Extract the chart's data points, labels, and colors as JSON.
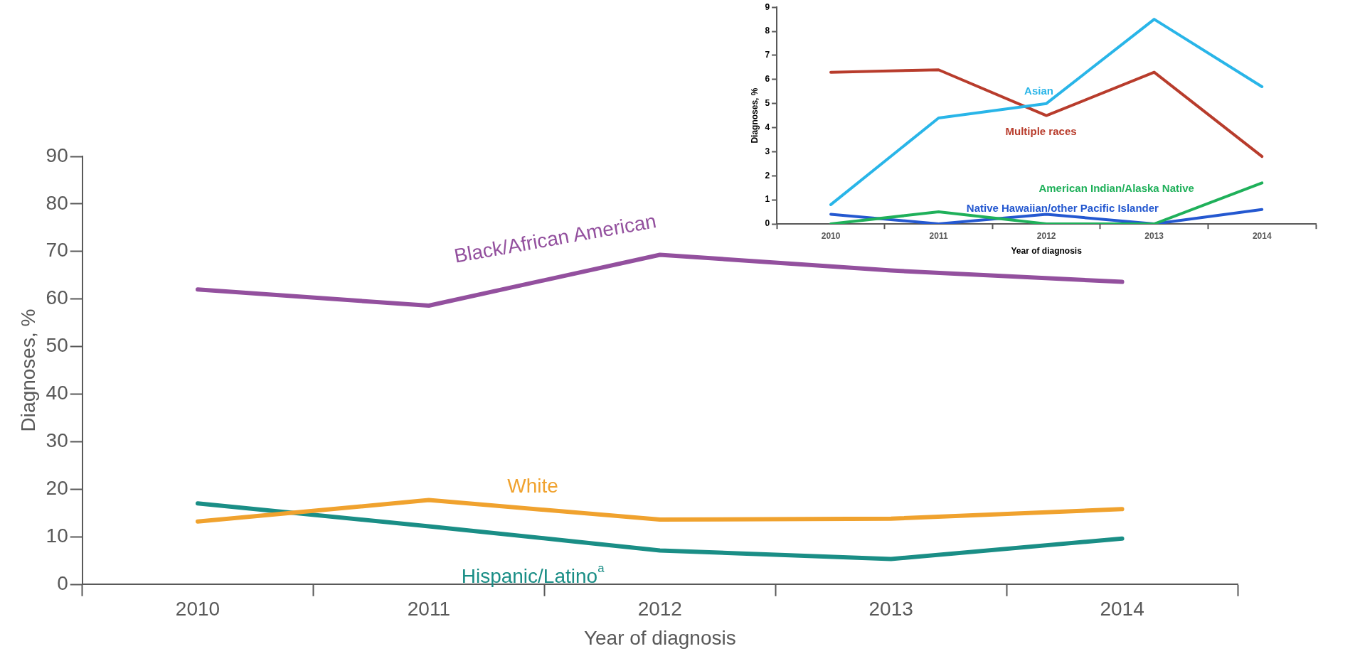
{
  "chart_data": [
    {
      "type": "line",
      "xlabel": "Year of diagnosis",
      "ylabel": "Diagnoses, %",
      "categories": [
        "2010",
        "2011",
        "2012",
        "2013",
        "2014"
      ],
      "ylim": [
        0,
        90
      ],
      "yticks": [
        0,
        10,
        20,
        30,
        40,
        50,
        60,
        70,
        80,
        90
      ],
      "grid": false,
      "legend": false,
      "marker": "none",
      "line_style": "solid",
      "series": [
        {
          "name": "Black/African American",
          "color": "#93509e",
          "values": [
            62,
            58.6,
            69.3,
            66,
            63.6
          ]
        },
        {
          "name": "White",
          "color": "#f0a22e",
          "values": [
            13.2,
            17.7,
            13.6,
            13.8,
            15.8
          ]
        },
        {
          "name": "Hispanic/Latino$^{a}$",
          "color": "#1a8e86",
          "values": [
            17,
            12.2,
            7.1,
            5.3,
            9.6
          ]
        }
      ]
    },
    {
      "type": "line",
      "xlabel": "Year of diagnosis",
      "ylabel": "Diagnoses, %",
      "categories": [
        "2010",
        "2011",
        "2012",
        "2013",
        "2014"
      ],
      "ylim": [
        0,
        9
      ],
      "yticks": [
        0,
        1,
        2,
        3,
        4,
        5,
        6,
        7,
        8,
        9
      ],
      "grid": false,
      "legend": false,
      "marker": "none",
      "line_style": "solid",
      "series": [
        {
          "name": "Asian",
          "color": "#29b5e8",
          "values": [
            0.8,
            4.4,
            5.0,
            8.5,
            5.7
          ]
        },
        {
          "name": "Multiple races",
          "color": "#b83c2c",
          "values": [
            6.3,
            6.4,
            4.5,
            6.3,
            2.8
          ]
        },
        {
          "name": "American Indian/Alaska Native",
          "color": "#1fb05a",
          "values": [
            0,
            0.5,
            0,
            0,
            1.7
          ]
        },
        {
          "name": "Native Hawaiian/other Pacific Islander",
          "color": "#2458d0",
          "values": [
            0.4,
            0,
            0.4,
            0,
            0.6
          ]
        }
      ]
    }
  ]
}
